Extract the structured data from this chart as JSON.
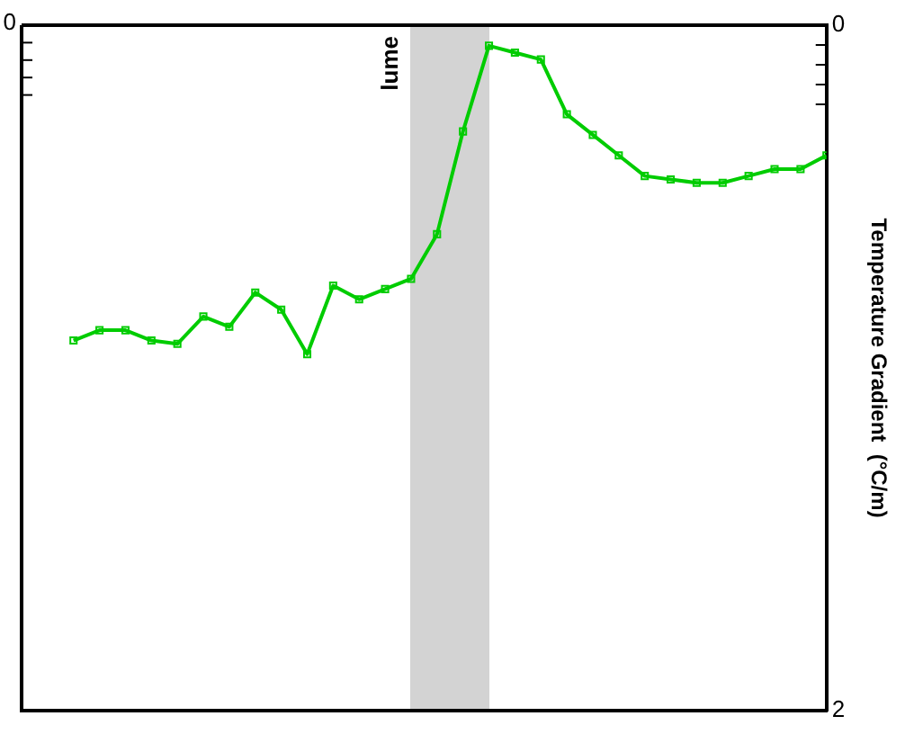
{
  "chart_data": {
    "type": "line",
    "ylabel": "Temperature Gradient  (°C/m)",
    "categories": [
      null,
      null,
      null,
      null,
      null,
      null,
      null,
      null,
      null,
      null,
      null,
      null,
      null,
      null,
      null,
      null,
      null,
      null,
      null,
      null,
      null,
      null,
      null,
      null,
      null,
      null,
      null,
      null,
      null,
      null
    ],
    "ylim": [
      2,
      0
    ],
    "yticks": [
      0,
      2
    ],
    "series": [
      {
        "color": "#00cc00",
        "values": [
          0.92,
          0.89,
          0.89,
          0.92,
          0.93,
          0.85,
          0.88,
          0.78,
          0.83,
          0.96,
          0.76,
          0.8,
          0.77,
          0.74,
          0.61,
          0.31,
          0.06,
          0.08,
          0.1,
          0.26,
          0.32,
          0.38,
          0.44,
          0.45,
          0.46,
          0.46,
          0.44,
          0.42,
          0.42,
          0.38
        ]
      }
    ],
    "annotations": [
      "0",
      "lume"
    ],
    "tick_labels": "y",
    "legend": false,
    "marker": "square",
    "line_style": "solid"
  }
}
